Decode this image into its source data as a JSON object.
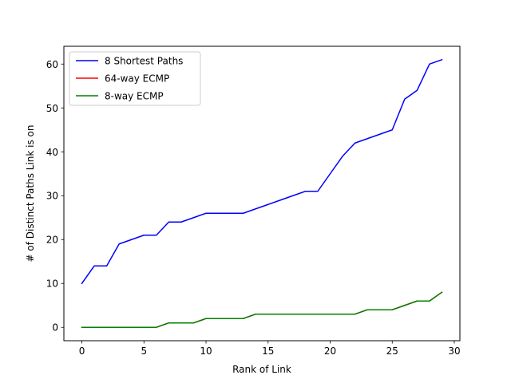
{
  "chart_data": {
    "type": "line",
    "title": "",
    "xlabel": "Rank of Link",
    "ylabel": "# of Distinct Paths Link is on",
    "xlim": [
      -1.45,
      30.45
    ],
    "ylim": [
      -3.05,
      64.05
    ],
    "xticks": [
      0,
      5,
      10,
      15,
      20,
      25,
      30
    ],
    "yticks": [
      0,
      10,
      20,
      30,
      40,
      50,
      60
    ],
    "grid": false,
    "legend_position": "upper left",
    "x": [
      0,
      1,
      2,
      3,
      4,
      5,
      6,
      7,
      8,
      9,
      10,
      11,
      12,
      13,
      14,
      15,
      16,
      17,
      18,
      19,
      20,
      21,
      22,
      23,
      24,
      25,
      26,
      27,
      28,
      29
    ],
    "series": [
      {
        "name": "8 Shortest Paths",
        "color": "#0000ff",
        "values": [
          10,
          14,
          14,
          19,
          20,
          21,
          21,
          24,
          24,
          25,
          26,
          26,
          26,
          26,
          27,
          28,
          29,
          30,
          31,
          31,
          35,
          39,
          42,
          43,
          44,
          45,
          52,
          54,
          60,
          61
        ]
      },
      {
        "name": "64-way ECMP",
        "color": "#ff0000",
        "values": [
          0,
          0,
          0,
          0,
          0,
          0,
          0,
          1,
          1,
          1,
          2,
          2,
          2,
          2,
          3,
          3,
          3,
          3,
          3,
          3,
          3,
          3,
          3,
          4,
          4,
          4,
          5,
          6,
          6,
          8
        ]
      },
      {
        "name": "8-way ECMP",
        "color": "#008000",
        "values": [
          0,
          0,
          0,
          0,
          0,
          0,
          0,
          1,
          1,
          1,
          2,
          2,
          2,
          2,
          3,
          3,
          3,
          3,
          3,
          3,
          3,
          3,
          3,
          4,
          4,
          4,
          5,
          6,
          6,
          8
        ]
      }
    ]
  }
}
